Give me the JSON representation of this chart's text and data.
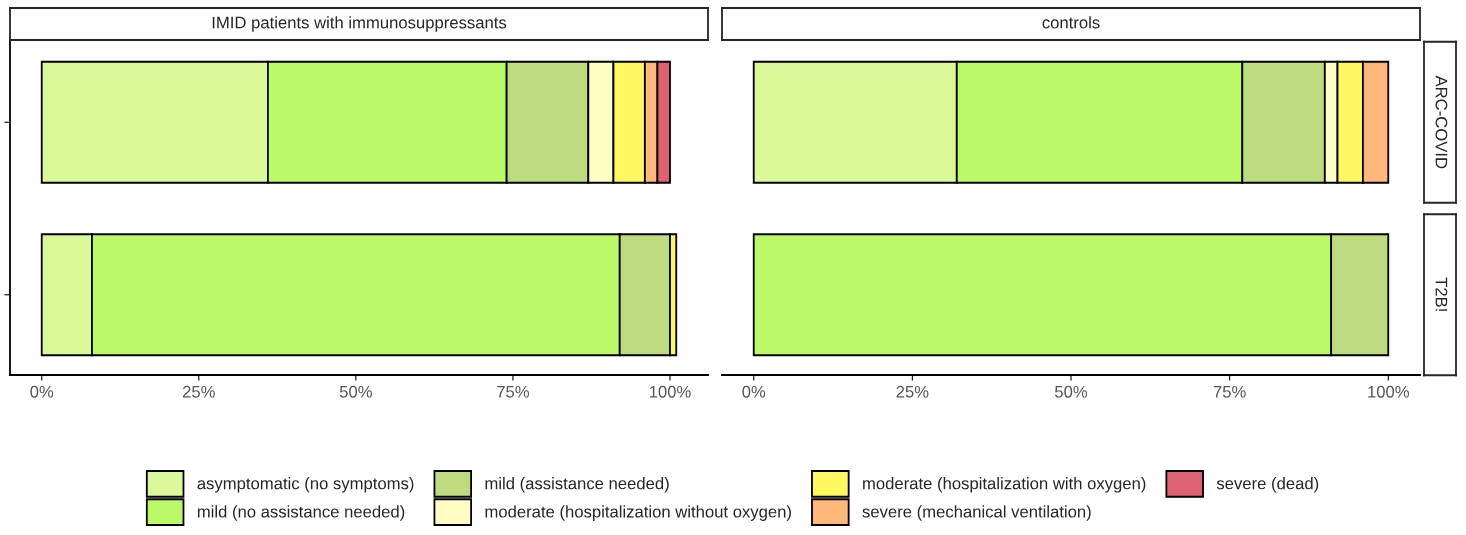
{
  "chart_data": [
    {
      "type": "bar",
      "orientation": "horizontal",
      "stacked": true,
      "title": "IMID patients with immunosuppressants",
      "categories": [
        null,
        null
      ],
      "xlim": [
        -5.05,
        106.05
      ],
      "xticks": [
        {
          "value": 0,
          "label": "0%"
        },
        {
          "value": 25,
          "label": "25%"
        },
        {
          "value": 50,
          "label": "50%"
        },
        {
          "value": 75,
          "label": "75%"
        },
        {
          "value": 100,
          "label": "100%"
        }
      ],
      "tick_labels": "x",
      "legend": "bottom",
      "grid": false,
      "series": [
        {
          "name": "asymptomatic (no symptoms)",
          "color": "#dcf99a",
          "values": [
            36,
            8
          ]
        },
        {
          "name": "mild (no assistance needed)",
          "color": "#bbf966",
          "values": [
            38,
            84
          ]
        },
        {
          "name": "mild (assistance needed)",
          "color": "#bedb7f",
          "values": [
            13,
            8
          ]
        },
        {
          "name": "moderate (hospitalization without oxygen)",
          "color": "#fffcc4",
          "values": [
            4,
            null
          ]
        },
        {
          "name": "moderate (hospitalization with oxygen)",
          "color": "#fff860",
          "values": [
            5,
            1
          ]
        },
        {
          "name": "severe (mechanical ventilation)",
          "color": "#ffb879",
          "values": [
            2,
            null
          ]
        },
        {
          "name": "severe (dead)",
          "color": "#dd6273",
          "values": [
            2,
            null
          ]
        }
      ]
    },
    {
      "type": "bar",
      "orientation": "horizontal",
      "stacked": true,
      "title": "controls",
      "categories": [
        "ARC-COVID",
        "T2B!"
      ],
      "xlim": [
        -5,
        105
      ],
      "xticks": [
        {
          "value": 0,
          "label": "0%"
        },
        {
          "value": 25,
          "label": "25%"
        },
        {
          "value": 50,
          "label": "50%"
        },
        {
          "value": 75,
          "label": "75%"
        },
        {
          "value": 100,
          "label": "100%"
        }
      ],
      "grid": false,
      "series": [
        {
          "color": "#dcf99a",
          "values": [
            32,
            null
          ]
        },
        {
          "color": "#bbf966",
          "values": [
            45,
            91
          ]
        },
        {
          "color": "#bedb7f",
          "values": [
            13,
            9
          ]
        },
        {
          "color": "#fffcc4",
          "values": [
            2,
            null
          ]
        },
        {
          "color": "#fff860",
          "values": [
            4,
            null
          ]
        },
        {
          "color": "#ffb879",
          "values": [
            4,
            null
          ]
        }
      ]
    }
  ]
}
